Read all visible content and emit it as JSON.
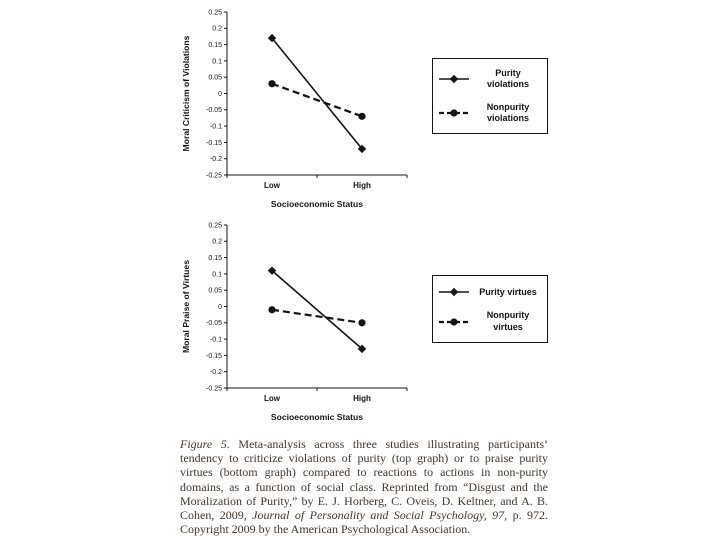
{
  "colors": {
    "paper": "#ffffff",
    "ink": "#141414",
    "caption-ink": "#43362a"
  },
  "chart_data": [
    {
      "type": "line",
      "title": "",
      "categories": [
        "Low",
        "High"
      ],
      "xlabel": "Socioeconomic Status",
      "ylabel": "Moral Criticism of Violations",
      "ylim": [
        -0.25,
        0.25
      ],
      "ytick_step": 0.05,
      "grid": false,
      "legend_position": "right",
      "series": [
        {
          "name": "Purity violations",
          "values": [
            0.17,
            -0.17
          ],
          "marker": "diamond",
          "dash": "solid"
        },
        {
          "name": "Nonpurity violations",
          "values": [
            0.03,
            -0.07
          ],
          "marker": "circle",
          "dash": "dashed"
        }
      ]
    },
    {
      "type": "line",
      "title": "",
      "categories": [
        "Low",
        "High"
      ],
      "xlabel": "Socioeconomic Status",
      "ylabel": "Moral Praise of Virtues",
      "ylim": [
        -0.25,
        0.25
      ],
      "ytick_step": 0.05,
      "grid": false,
      "legend_position": "right",
      "series": [
        {
          "name": "Purity virtues",
          "values": [
            0.11,
            -0.13
          ],
          "marker": "diamond",
          "dash": "solid"
        },
        {
          "name": "Nonpurity virtues",
          "values": [
            -0.01,
            -0.05
          ],
          "marker": "circle",
          "dash": "dashed"
        }
      ]
    }
  ],
  "caption": {
    "segments": [
      {
        "text": "Figure 5.",
        "style": "italic"
      },
      {
        "text": "  Meta-analysis across three studies illustrating participants’ tendency to criticize violations of purity (top graph) or to praise purity virtues (bottom graph) compared to reactions to actions in non-purity domains, as a function of social class. Reprinted from “Disgust and the Moralization of Purity,” by E. J. Horberg, C. Oveis, D. Keltner, and A. B. Cohen, 2009, ",
        "style": "normal"
      },
      {
        "text": "Journal of Personality and Social Psychology, 97,",
        "style": "italic"
      },
      {
        "text": " p. 972. Copyright 2009 by the American Psychological Association.",
        "style": "normal"
      }
    ]
  }
}
